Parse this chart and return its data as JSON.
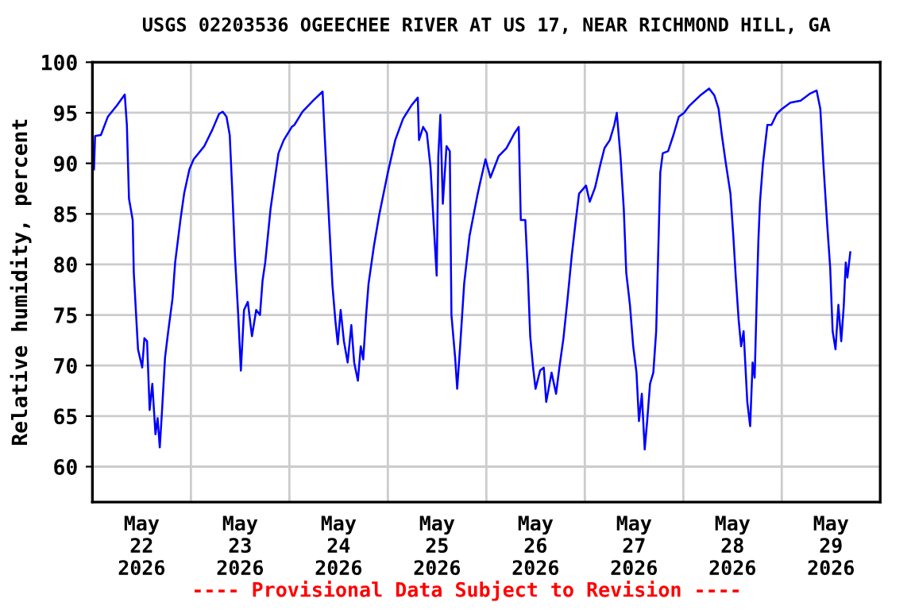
{
  "chart_data": {
    "type": "line",
    "title": "USGS 02203536 OGEECHEE RIVER AT US 17, NEAR RICHMOND HILL, GA",
    "ylabel": "Relative humidity, percent",
    "annotations": [
      "---- Provisional Data Subject to Revision ----"
    ],
    "x": [
      "2026-05-22T00:23",
      "2026-05-22T00:39",
      "2026-05-22T02:04",
      "2026-05-22T03:45",
      "2026-05-22T05:56",
      "2026-05-22T07:53",
      "2026-05-22T08:24",
      "2026-05-22T08:55",
      "2026-05-22T09:49",
      "2026-05-22T10:05",
      "2026-05-22T10:43",
      "2026-05-22T11:07",
      "2026-05-22T12:08",
      "2026-05-22T12:40",
      "2026-05-22T13:19",
      "2026-05-22T13:57",
      "2026-05-22T14:36",
      "2026-05-22T15:22",
      "2026-05-22T15:53",
      "2026-05-22T16:25",
      "2026-05-22T16:56",
      "2026-05-22T17:42",
      "2026-05-22T18:29",
      "2026-05-22T19:31",
      "2026-05-22T20:10",
      "2026-05-22T21:27",
      "2026-05-22T22:21",
      "2026-05-22T23:38",
      "2026-05-23T00:41",
      "2026-05-23T03:16",
      "2026-05-23T05:12",
      "2026-05-23T06:53",
      "2026-05-23T07:47",
      "2026-05-23T08:41",
      "2026-05-23T09:28",
      "2026-05-23T10:07",
      "2026-05-23T10:45",
      "2026-05-23T11:32",
      "2026-05-23T12:11",
      "2026-05-23T12:57",
      "2026-05-23T13:52",
      "2026-05-23T14:53",
      "2026-05-23T15:55",
      "2026-05-23T16:50",
      "2026-05-23T17:28",
      "2026-05-23T18:07",
      "2026-05-23T19:25",
      "2026-05-23T20:19",
      "2026-05-23T21:21",
      "2026-05-23T22:38",
      "2026-05-24T00:35",
      "2026-05-24T01:14",
      "2026-05-24T03:12",
      "2026-05-24T05:48",
      "2026-05-24T08:06",
      "2026-05-24T08:36",
      "2026-05-24T09:36",
      "2026-05-24T10:30",
      "2026-05-24T11:12",
      "2026-05-24T11:48",
      "2026-05-24T12:30",
      "2026-05-24T13:18",
      "2026-05-24T14:12",
      "2026-05-24T15:06",
      "2026-05-24T15:48",
      "2026-05-24T16:42",
      "2026-05-24T17:24",
      "2026-05-24T18:00",
      "2026-05-24T18:42",
      "2026-05-24T19:18",
      "2026-05-24T20:36",
      "2026-05-24T21:54",
      "2026-05-24T23:54",
      "2026-05-25T01:48",
      "2026-05-25T03:42",
      "2026-05-25T05:42",
      "2026-05-25T07:18",
      "2026-05-25T07:36",
      "2026-05-25T08:36",
      "2026-05-25T09:30",
      "2026-05-25T10:24",
      "2026-05-25T11:12",
      "2026-05-25T11:54",
      "2026-05-25T12:18",
      "2026-05-25T12:48",
      "2026-05-25T13:24",
      "2026-05-25T14:18",
      "2026-05-25T15:06",
      "2026-05-25T15:30",
      "2026-05-25T16:24",
      "2026-05-25T16:54",
      "2026-05-25T17:42",
      "2026-05-25T18:36",
      "2026-05-25T19:54",
      "2026-05-25T21:48",
      "2026-05-25T22:30",
      "2026-05-25T23:48",
      "2026-05-26T01:00",
      "2026-05-26T03:00",
      "2026-05-26T04:54",
      "2026-05-26T06:54",
      "2026-05-26T07:54",
      "2026-05-26T08:24",
      "2026-05-26T09:30",
      "2026-05-26T10:06",
      "2026-05-26T10:42",
      "2026-05-26T11:24",
      "2026-05-26T12:00",
      "2026-05-26T13:06",
      "2026-05-26T14:00",
      "2026-05-26T14:36",
      "2026-05-26T15:54",
      "2026-05-26T17:00",
      "2026-05-26T17:48",
      "2026-05-26T18:48",
      "2026-05-26T19:48",
      "2026-05-26T20:48",
      "2026-05-26T21:42",
      "2026-05-26T22:36",
      "2026-05-27T00:18",
      "2026-05-27T01:12",
      "2026-05-27T02:30",
      "2026-05-27T03:48",
      "2026-05-27T04:48",
      "2026-05-27T06:06",
      "2026-05-27T07:12",
      "2026-05-27T07:48",
      "2026-05-27T08:42",
      "2026-05-27T09:30",
      "2026-05-27T10:06",
      "2026-05-27T11:00",
      "2026-05-27T11:48",
      "2026-05-27T12:36",
      "2026-05-27T13:12",
      "2026-05-27T13:54",
      "2026-05-27T14:36",
      "2026-05-27T15:12",
      "2026-05-27T15:54",
      "2026-05-27T16:42",
      "2026-05-27T17:24",
      "2026-05-27T17:48",
      "2026-05-27T18:24",
      "2026-05-27T19:00",
      "2026-05-27T20:18",
      "2026-05-27T21:36",
      "2026-05-27T22:54",
      "2026-05-28T00:12",
      "2026-05-28T01:30",
      "2026-05-28T04:06",
      "2026-05-28T06:18",
      "2026-05-28T07:36",
      "2026-05-28T08:36",
      "2026-05-28T09:24",
      "2026-05-28T10:18",
      "2026-05-28T11:30",
      "2026-05-28T12:12",
      "2026-05-28T12:48",
      "2026-05-28T13:30",
      "2026-05-28T14:06",
      "2026-05-28T14:42",
      "2026-05-28T15:06",
      "2026-05-28T15:36",
      "2026-05-28T16:18",
      "2026-05-28T16:54",
      "2026-05-28T17:24",
      "2026-05-28T17:54",
      "2026-05-28T18:18",
      "2026-05-28T18:42",
      "2026-05-28T19:24",
      "2026-05-28T20:30",
      "2026-05-28T21:30",
      "2026-05-28T22:48",
      "2026-05-29T00:06",
      "2026-05-29T02:06",
      "2026-05-29T04:36",
      "2026-05-29T06:54",
      "2026-05-29T08:30",
      "2026-05-29T09:24",
      "2026-05-29T10:12",
      "2026-05-29T11:06",
      "2026-05-29T11:48",
      "2026-05-29T12:24",
      "2026-05-29T13:06",
      "2026-05-29T13:48",
      "2026-05-29T14:30",
      "2026-05-29T15:06",
      "2026-05-29T15:36",
      "2026-05-29T16:00",
      "2026-05-29T16:42"
    ],
    "series": [
      {
        "color": "#0000ff",
        "values": [
          89.4,
          92.7,
          92.8,
          94.6,
          95.7,
          96.8,
          93.8,
          86.5,
          84.4,
          79.2,
          74.5,
          71.6,
          69.8,
          72.7,
          72.4,
          65.6,
          68.2,
          63.2,
          64.8,
          61.9,
          65.3,
          70.8,
          73.4,
          76.6,
          80.2,
          84.4,
          87.0,
          89.4,
          90.4,
          91.7,
          93.3,
          94.9,
          95.1,
          94.6,
          92.8,
          87.0,
          80.8,
          75.0,
          69.5,
          75.5,
          76.3,
          72.9,
          75.5,
          75.0,
          78.4,
          80.2,
          85.5,
          88.1,
          91.0,
          92.3,
          93.6,
          93.8,
          95.1,
          96.2,
          97.1,
          92.8,
          84.9,
          77.9,
          74.5,
          72.1,
          75.5,
          72.4,
          70.3,
          74.0,
          70.3,
          68.5,
          71.9,
          70.6,
          75.0,
          78.1,
          81.8,
          84.9,
          88.9,
          92.3,
          94.4,
          95.7,
          96.5,
          92.3,
          93.6,
          93.0,
          89.6,
          83.8,
          78.9,
          90.7,
          94.8,
          86.0,
          91.7,
          91.2,
          75.0,
          70.8,
          67.7,
          72.4,
          78.1,
          82.8,
          86.8,
          88.1,
          90.4,
          88.6,
          90.7,
          91.5,
          93.0,
          93.6,
          84.4,
          84.4,
          79.2,
          72.9,
          69.8,
          67.7,
          69.5,
          69.8,
          66.4,
          69.3,
          67.2,
          69.8,
          72.7,
          76.6,
          80.8,
          84.0,
          87.0,
          87.8,
          86.2,
          87.6,
          89.9,
          91.5,
          92.3,
          93.8,
          95.0,
          90.7,
          85.5,
          79.2,
          76.0,
          71.9,
          69.3,
          64.5,
          67.2,
          61.7,
          64.5,
          68.2,
          69.3,
          73.4,
          79.7,
          89.1,
          91.0,
          91.2,
          92.8,
          94.6,
          95.0,
          95.7,
          96.7,
          97.4,
          96.7,
          95.4,
          92.8,
          90.2,
          87.0,
          82.8,
          78.7,
          74.5,
          71.9,
          73.4,
          70.3,
          66.4,
          64.0,
          70.3,
          68.8,
          76.6,
          82.3,
          86.2,
          89.9,
          93.8,
          93.8,
          94.9,
          95.4,
          96.0,
          96.2,
          96.9,
          97.2,
          95.4,
          89.6,
          83.8,
          79.7,
          73.4,
          71.6,
          76.0,
          72.4,
          75.8,
          80.2,
          78.7,
          81.2
        ]
      }
    ],
    "xlim": [
      "2026-05-22T00:00",
      "2026-05-30T00:00"
    ],
    "xticks": [
      {
        "value": "2026-05-22T12:00",
        "label": "May\n22\n2026"
      },
      {
        "value": "2026-05-23T00:00",
        "label": null
      },
      {
        "value": "2026-05-23T12:00",
        "label": "May\n23\n2026"
      },
      {
        "value": "2026-05-24T00:00",
        "label": null
      },
      {
        "value": "2026-05-24T12:00",
        "label": "May\n24\n2026"
      },
      {
        "value": "2026-05-25T00:00",
        "label": null
      },
      {
        "value": "2026-05-25T12:00",
        "label": "May\n25\n2026"
      },
      {
        "value": "2026-05-26T00:00",
        "label": null
      },
      {
        "value": "2026-05-26T12:00",
        "label": "May\n26\n2026"
      },
      {
        "value": "2026-05-27T00:00",
        "label": null
      },
      {
        "value": "2026-05-27T12:00",
        "label": "May\n27\n2026"
      },
      {
        "value": "2026-05-28T00:00",
        "label": null
      },
      {
        "value": "2026-05-28T12:00",
        "label": "May\n28\n2026"
      },
      {
        "value": "2026-05-29T00:00",
        "label": null
      },
      {
        "value": "2026-05-29T12:00",
        "label": "May\n29\n2026"
      }
    ],
    "ylim": [
      56.5,
      100
    ],
    "yticks": [
      60,
      65,
      70,
      75,
      80,
      85,
      90,
      95,
      100
    ],
    "grid": true,
    "line_style": "solid"
  }
}
